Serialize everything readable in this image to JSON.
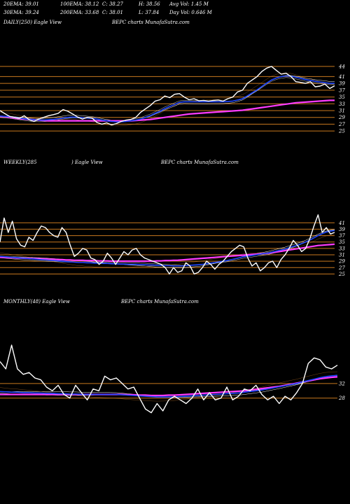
{
  "header": {
    "row1": [
      "20EMA: 39.01",
      "100EMA: 38.12",
      "C: 38.27",
      "H: 38.56",
      "Avg Vol: 1.45  M"
    ],
    "row2": [
      "30EMA: 39.24",
      "200EMA: 33.68",
      "C: 38.01",
      "L: 37.84",
      "Day Vol: 0.646  M"
    ]
  },
  "panels": {
    "daily": {
      "label": "DAILY(250) Eagle  View",
      "site": "BEPC charts MunafaSutra.com"
    },
    "weekly": {
      "label": "WEEKLY(285",
      "label2": ") Eagle  View",
      "site": "BEPC charts MunafaSutra.com"
    },
    "monthly": {
      "label": "MONTHLY(48) Eagle  View",
      "site": "BEPC charts MunafaSutra.com"
    }
  },
  "colors": {
    "background": "#000000",
    "price": "#ffffff",
    "level_lines": "#c8781e",
    "ema_fast": "#1e46ff",
    "ema_long": "#ff3cff",
    "ema_thin": "#ffffff"
  },
  "chart_data": [
    {
      "type": "line",
      "panel": "daily",
      "yticks": [
        44,
        41,
        39,
        37,
        35,
        33,
        31,
        29,
        27,
        25
      ],
      "ylim": [
        24,
        45
      ],
      "series": [
        {
          "role": "price",
          "values": [
            31.0,
            30.1,
            29.3,
            29.0,
            28.7,
            29.5,
            28.3,
            27.8,
            28.5,
            29.0,
            29.5,
            29.8,
            30.2,
            31.3,
            30.8,
            30.0,
            29.1,
            28.5,
            29.0,
            28.8,
            27.5,
            27.0,
            27.4,
            26.8,
            27.2,
            27.8,
            28.2,
            28.4,
            29.0,
            30.5,
            31.5,
            32.5,
            33.8,
            34.2,
            35.3,
            34.8,
            35.8,
            36.0,
            35.0,
            34.2,
            34.5,
            33.9,
            34.0,
            33.8,
            34.0,
            34.1,
            33.8,
            34.5,
            35.0,
            36.5,
            37.0,
            39.0,
            40.0,
            41.0,
            42.5,
            43.5,
            44.0,
            42.8,
            41.7,
            42.0,
            41.0,
            39.5,
            39.3,
            39.0,
            39.5,
            38.0,
            38.2,
            38.8,
            37.5,
            38.3
          ]
        },
        {
          "role": "ema_fast",
          "values": [
            29.4,
            29.3,
            29.2,
            29.0,
            28.8,
            28.6,
            28.4,
            28.3,
            28.2,
            28.2,
            28.3,
            28.4,
            28.6,
            28.8,
            29.0,
            29.1,
            29.0,
            28.9,
            28.8,
            28.7,
            28.5,
            28.2,
            28.0,
            27.8,
            27.7,
            27.7,
            27.8,
            28.0,
            28.2,
            28.5,
            29.0,
            29.5,
            30.2,
            30.8,
            31.6,
            32.2,
            32.8,
            33.4,
            33.6,
            33.6,
            33.6,
            33.6,
            33.6,
            33.6,
            33.6,
            33.6,
            33.6,
            33.7,
            33.8,
            34.1,
            34.5,
            35.3,
            36.2,
            37.1,
            38.1,
            39.1,
            40.0,
            40.6,
            41.0,
            41.2,
            41.1,
            40.8,
            40.5,
            40.1,
            39.9,
            39.6,
            39.4,
            39.2,
            39.0,
            39.0
          ]
        },
        {
          "role": "ema_long",
          "values": [
            29.3,
            29.2,
            29.0,
            28.8,
            28.6,
            28.5,
            28.4,
            28.3,
            28.2,
            28.1,
            28.0,
            28.0,
            28.0,
            28.0,
            28.0,
            28.0,
            28.0,
            28.0,
            28.0,
            28.0,
            28.0,
            28.0,
            28.0,
            28.0,
            28.0,
            28.0,
            28.0,
            28.0,
            28.1,
            28.2,
            28.3,
            28.4,
            28.6,
            28.8,
            29.0,
            29.2,
            29.4,
            29.6,
            29.8,
            30.0,
            30.1,
            30.2,
            30.3,
            30.4,
            30.5,
            30.6,
            30.7,
            30.8,
            30.9,
            31.0,
            31.1,
            31.3,
            31.5,
            31.7,
            31.9,
            32.1,
            32.3,
            32.5,
            32.7,
            32.9,
            33.1,
            33.3,
            33.4,
            33.5,
            33.6,
            33.7,
            33.8,
            33.9,
            34.0,
            34.0
          ]
        }
      ]
    },
    {
      "type": "line",
      "panel": "weekly",
      "yticks": [
        41,
        39,
        37,
        35,
        33,
        31,
        29,
        27,
        25
      ],
      "ylim": [
        24,
        45
      ],
      "series": [
        {
          "role": "price",
          "values": [
            35.0,
            42.5,
            38.0,
            41.5,
            36.0,
            34.0,
            33.5,
            36.5,
            35.5,
            38.0,
            40.0,
            39.5,
            38.0,
            37.0,
            36.5,
            39.5,
            38.0,
            34.0,
            30.5,
            31.5,
            33.0,
            32.5,
            30.0,
            29.5,
            28.0,
            29.0,
            31.5,
            30.0,
            28.0,
            30.0,
            32.0,
            31.0,
            32.5,
            33.0,
            31.0,
            30.0,
            29.5,
            29.0,
            28.5,
            28.0,
            27.0,
            25.0,
            27.0,
            25.5,
            26.0,
            28.5,
            27.5,
            25.0,
            25.5,
            27.0,
            29.0,
            28.0,
            26.5,
            28.0,
            29.0,
            30.5,
            32.0,
            33.0,
            34.0,
            33.5,
            30.0,
            27.5,
            28.5,
            26.0,
            27.0,
            28.5,
            29.0,
            27.0,
            29.5,
            31.0,
            33.0,
            35.5,
            34.0,
            32.0,
            33.0,
            36.0,
            40.0,
            43.5,
            38.0,
            39.5,
            37.5,
            38.0
          ]
        },
        {
          "role": "ema_fast",
          "values": [
            30.5,
            30.4,
            30.3,
            30.2,
            30.1,
            30.0,
            29.9,
            29.8,
            29.7,
            29.6,
            29.5,
            29.4,
            29.3,
            29.2,
            29.1,
            29.0,
            28.9,
            28.8,
            28.7,
            28.6,
            28.6,
            28.5,
            28.5,
            28.4,
            28.4,
            28.3,
            28.3,
            28.2,
            28.2,
            28.1,
            28.1,
            28.0,
            28.0,
            28.0,
            27.9,
            27.9,
            27.8,
            27.8,
            27.7,
            27.7,
            27.6,
            27.6,
            27.5,
            27.5,
            27.5,
            27.6,
            27.7,
            27.8,
            27.9,
            28.0,
            28.2,
            28.4,
            28.6,
            28.8,
            29.0,
            29.2,
            29.5,
            29.8,
            30.1,
            30.4,
            30.6,
            30.8,
            31.0,
            31.2,
            31.4,
            31.6,
            31.9,
            32.2,
            32.5,
            32.8,
            33.2,
            33.6,
            34.0,
            34.5,
            35.0,
            35.6,
            36.3,
            37.0,
            37.6,
            38.1,
            38.4,
            38.6
          ]
        },
        {
          "role": "ema_long",
          "values": [
            30.2,
            30.2,
            30.1,
            30.1,
            30.0,
            30.0,
            29.9,
            29.9,
            29.8,
            29.8,
            29.7,
            29.7,
            29.6,
            29.6,
            29.5,
            29.5,
            29.4,
            29.4,
            29.3,
            29.3,
            29.3,
            29.2,
            29.2,
            29.2,
            29.1,
            29.1,
            29.1,
            29.0,
            29.0,
            29.0,
            29.0,
            29.0,
            29.0,
            29.0,
            29.0,
            29.0,
            29.0,
            29.0,
            29.1,
            29.1,
            29.2,
            29.2,
            29.3,
            29.3,
            29.4,
            29.5,
            29.6,
            29.7,
            29.8,
            29.9,
            30.0,
            30.1,
            30.2,
            30.3,
            30.4,
            30.5,
            30.6,
            30.7,
            30.8,
            30.9,
            31.0,
            31.1,
            31.2,
            31.3,
            31.4,
            31.5,
            31.7,
            31.9,
            32.1,
            32.3,
            32.5,
            32.7,
            32.9,
            33.1,
            33.3,
            33.5,
            33.7,
            33.9,
            34.0,
            34.1,
            34.2,
            34.3
          ]
        }
      ]
    },
    {
      "type": "line",
      "panel": "monthly",
      "yticks": [
        32,
        28
      ],
      "ylim": [
        22,
        45
      ],
      "series": [
        {
          "role": "price",
          "values": [
            38.0,
            36.0,
            42.5,
            36.0,
            34.5,
            35.0,
            33.5,
            33.0,
            31.0,
            30.0,
            31.5,
            29.0,
            28.0,
            31.5,
            29.5,
            27.5,
            30.5,
            30.0,
            34.0,
            33.0,
            33.5,
            32.0,
            30.5,
            31.0,
            28.0,
            25.0,
            24.0,
            26.5,
            24.5,
            27.5,
            28.5,
            27.5,
            26.5,
            28.0,
            30.5,
            27.5,
            29.5,
            27.5,
            28.0,
            31.0,
            27.5,
            28.5,
            30.5,
            30.0,
            31.5,
            29.0,
            27.5,
            28.5,
            26.5,
            28.5,
            27.5,
            29.5,
            32.0,
            37.5,
            39.0,
            38.5,
            36.5,
            36.0,
            37.0
          ]
        },
        {
          "role": "ema_fast",
          "values": [
            29.8,
            29.7,
            29.6,
            29.6,
            29.5,
            29.5,
            29.4,
            29.4,
            29.3,
            29.3,
            29.2,
            29.2,
            29.1,
            29.1,
            29.0,
            29.0,
            29.0,
            29.0,
            29.0,
            29.0,
            29.0,
            28.9,
            28.8,
            28.7,
            28.6,
            28.5,
            28.4,
            28.3,
            28.3,
            28.3,
            28.3,
            28.4,
            28.5,
            28.6,
            28.7,
            28.8,
            28.9,
            29.0,
            29.1,
            29.2,
            29.3,
            29.4,
            29.6,
            29.8,
            30.0,
            30.2,
            30.5,
            30.8,
            31.1,
            31.4,
            31.7,
            32.0,
            32.4,
            32.8,
            33.2,
            33.6,
            33.9,
            34.1,
            34.2
          ]
        },
        {
          "role": "ema_long",
          "values": [
            29.0,
            29.0,
            29.0,
            29.0,
            29.0,
            29.0,
            29.0,
            29.0,
            29.0,
            29.0,
            29.0,
            29.0,
            29.0,
            29.0,
            29.0,
            29.0,
            29.0,
            29.0,
            29.0,
            29.0,
            29.0,
            29.0,
            28.9,
            28.9,
            28.8,
            28.8,
            28.7,
            28.7,
            28.7,
            28.8,
            28.8,
            28.9,
            29.0,
            29.1,
            29.2,
            29.3,
            29.4,
            29.5,
            29.6,
            29.7,
            29.8,
            29.9,
            30.0,
            30.2,
            30.4,
            30.6,
            30.8,
            31.0,
            31.2,
            31.5,
            31.8,
            32.1,
            32.4,
            32.7,
            33.0,
            33.3,
            33.5,
            33.7,
            33.8
          ]
        }
      ]
    }
  ]
}
